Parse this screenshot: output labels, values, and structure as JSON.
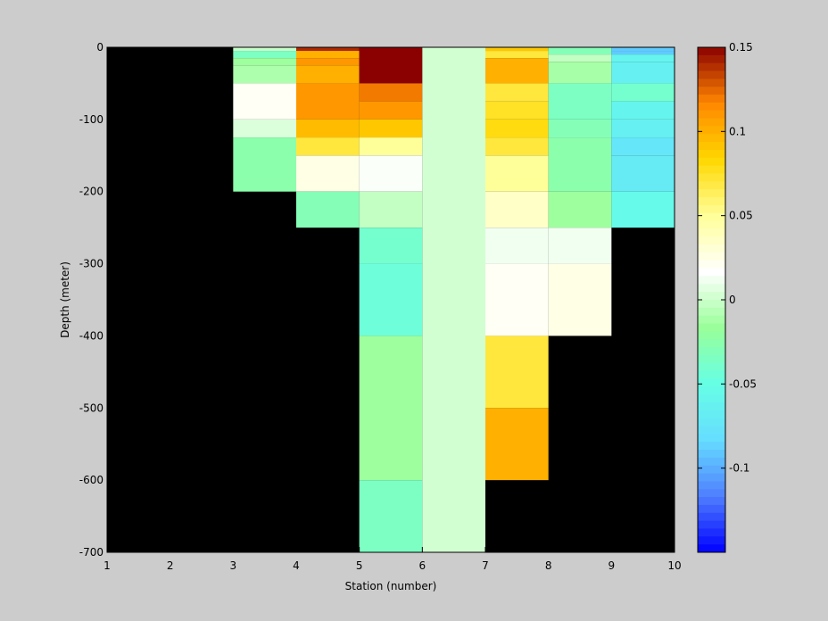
{
  "chart_data": {
    "type": "heatmap",
    "xlabel": "Station (number)",
    "ylabel": "Depth (meter)",
    "xlim": [
      1,
      10
    ],
    "ylim": [
      -700,
      0
    ],
    "x_ticks": [
      "1",
      "2",
      "3",
      "4",
      "5",
      "6",
      "7",
      "8",
      "9",
      "10"
    ],
    "y_ticks": [
      "0",
      "-100",
      "-200",
      "-300",
      "-400",
      "-500",
      "-600",
      "-700"
    ],
    "background_color": "#000000",
    "colorbar": {
      "min": -0.15,
      "max": 0.15,
      "ticks": [
        "0.15",
        "0.1",
        "0.05",
        "0",
        "-0.05",
        "-0.1"
      ],
      "colormap": [
        "#0000ff",
        "#4f7fff",
        "#66ddff",
        "#66ffe6",
        "#99ff99",
        "#ffffff",
        "#ffff99",
        "#ffd700",
        "#ff8800",
        "#8b0000"
      ]
    },
    "cells": [
      {
        "x0": 3,
        "x1": 4,
        "y0": 0,
        "y1": -5,
        "value": -0.001
      },
      {
        "x0": 3,
        "x1": 4,
        "y0": -5,
        "y1": -15,
        "value": -0.035
      },
      {
        "x0": 3,
        "x1": 4,
        "y0": -15,
        "y1": -25,
        "value": -0.015
      },
      {
        "x0": 3,
        "x1": 4,
        "y0": -25,
        "y1": -50,
        "value": -0.01
      },
      {
        "x0": 3,
        "x1": 4,
        "y0": -50,
        "y1": -100,
        "value": 0.02
      },
      {
        "x0": 3,
        "x1": 4,
        "y0": -100,
        "y1": -125,
        "value": 0.005
      },
      {
        "x0": 3,
        "x1": 4,
        "y0": -125,
        "y1": -200,
        "value": -0.025
      },
      {
        "x0": 4,
        "x1": 5,
        "y0": 0,
        "y1": -5,
        "value": 0.14
      },
      {
        "x0": 4,
        "x1": 5,
        "y0": -5,
        "y1": -15,
        "value": 0.1
      },
      {
        "x0": 4,
        "x1": 5,
        "y0": -15,
        "y1": -25,
        "value": 0.11
      },
      {
        "x0": 4,
        "x1": 5,
        "y0": -25,
        "y1": -50,
        "value": 0.1
      },
      {
        "x0": 4,
        "x1": 5,
        "y0": -50,
        "y1": -100,
        "value": 0.11
      },
      {
        "x0": 4,
        "x1": 5,
        "y0": -100,
        "y1": -125,
        "value": 0.095
      },
      {
        "x0": 4,
        "x1": 5,
        "y0": -125,
        "y1": -150,
        "value": 0.07
      },
      {
        "x0": 4,
        "x1": 5,
        "y0": -150,
        "y1": -200,
        "value": 0.025
      },
      {
        "x0": 4,
        "x1": 5,
        "y0": -200,
        "y1": -250,
        "value": -0.03
      },
      {
        "x0": 5,
        "x1": 6,
        "y0": 0,
        "y1": -50,
        "value": 0.15
      },
      {
        "x0": 5,
        "x1": 6,
        "y0": -50,
        "y1": -75,
        "value": 0.12
      },
      {
        "x0": 5,
        "x1": 6,
        "y0": -75,
        "y1": -100,
        "value": 0.11
      },
      {
        "x0": 5,
        "x1": 6,
        "y0": -100,
        "y1": -125,
        "value": 0.09
      },
      {
        "x0": 5,
        "x1": 6,
        "y0": -125,
        "y1": -150,
        "value": 0.05
      },
      {
        "x0": 5,
        "x1": 6,
        "y0": -150,
        "y1": -200,
        "value": 0.015
      },
      {
        "x0": 5,
        "x1": 6,
        "y0": -200,
        "y1": -250,
        "value": -0.003
      },
      {
        "x0": 5,
        "x1": 6,
        "y0": -250,
        "y1": -300,
        "value": -0.04
      },
      {
        "x0": 5,
        "x1": 6,
        "y0": -300,
        "y1": -400,
        "value": -0.045
      },
      {
        "x0": 5,
        "x1": 6,
        "y0": -400,
        "y1": -600,
        "value": -0.015
      },
      {
        "x0": 5,
        "x1": 6,
        "y0": -600,
        "y1": -700,
        "value": -0.035
      },
      {
        "x0": 6,
        "x1": 7,
        "y0": 0,
        "y1": -700,
        "value": 0.002
      },
      {
        "x0": 7,
        "x1": 8,
        "y0": 0,
        "y1": -5,
        "value": 0.09
      },
      {
        "x0": 7,
        "x1": 8,
        "y0": -5,
        "y1": -15,
        "value": 0.07
      },
      {
        "x0": 7,
        "x1": 8,
        "y0": -15,
        "y1": -50,
        "value": 0.1
      },
      {
        "x0": 7,
        "x1": 8,
        "y0": -50,
        "y1": -75,
        "value": 0.07
      },
      {
        "x0": 7,
        "x1": 8,
        "y0": -75,
        "y1": -100,
        "value": 0.075
      },
      {
        "x0": 7,
        "x1": 8,
        "y0": -100,
        "y1": -125,
        "value": 0.08
      },
      {
        "x0": 7,
        "x1": 8,
        "y0": -125,
        "y1": -150,
        "value": 0.07
      },
      {
        "x0": 7,
        "x1": 8,
        "y0": -150,
        "y1": -200,
        "value": 0.05
      },
      {
        "x0": 7,
        "x1": 8,
        "y0": -200,
        "y1": -250,
        "value": 0.035
      },
      {
        "x0": 7,
        "x1": 8,
        "y0": -250,
        "y1": -300,
        "value": 0.012
      },
      {
        "x0": 7,
        "x1": 8,
        "y0": -300,
        "y1": -400,
        "value": 0.02
      },
      {
        "x0": 7,
        "x1": 8,
        "y0": -400,
        "y1": -500,
        "value": 0.07
      },
      {
        "x0": 7,
        "x1": 8,
        "y0": -500,
        "y1": -600,
        "value": 0.1
      },
      {
        "x0": 8,
        "x1": 9,
        "y0": 0,
        "y1": -10,
        "value": -0.03
      },
      {
        "x0": 8,
        "x1": 9,
        "y0": -10,
        "y1": -20,
        "value": -0.003
      },
      {
        "x0": 8,
        "x1": 9,
        "y0": -20,
        "y1": -50,
        "value": -0.012
      },
      {
        "x0": 8,
        "x1": 9,
        "y0": -50,
        "y1": -100,
        "value": -0.035
      },
      {
        "x0": 8,
        "x1": 9,
        "y0": -100,
        "y1": -125,
        "value": -0.03
      },
      {
        "x0": 8,
        "x1": 9,
        "y0": -125,
        "y1": -200,
        "value": -0.025
      },
      {
        "x0": 8,
        "x1": 9,
        "y0": -200,
        "y1": -250,
        "value": -0.015
      },
      {
        "x0": 8,
        "x1": 9,
        "y0": -250,
        "y1": -300,
        "value": 0.012
      },
      {
        "x0": 8,
        "x1": 9,
        "y0": -300,
        "y1": -400,
        "value": 0.025
      },
      {
        "x0": 9,
        "x1": 10,
        "y0": 0,
        "y1": -5,
        "value": -0.09
      },
      {
        "x0": 9,
        "x1": 10,
        "y0": -5,
        "y1": -10,
        "value": -0.09
      },
      {
        "x0": 9,
        "x1": 10,
        "y0": -10,
        "y1": -20,
        "value": -0.06
      },
      {
        "x0": 9,
        "x1": 10,
        "y0": -20,
        "y1": -50,
        "value": -0.065
      },
      {
        "x0": 9,
        "x1": 10,
        "y0": -50,
        "y1": -75,
        "value": -0.04
      },
      {
        "x0": 9,
        "x1": 10,
        "y0": -75,
        "y1": -100,
        "value": -0.06
      },
      {
        "x0": 9,
        "x1": 10,
        "y0": -100,
        "y1": -125,
        "value": -0.065
      },
      {
        "x0": 9,
        "x1": 10,
        "y0": -125,
        "y1": -150,
        "value": -0.075
      },
      {
        "x0": 9,
        "x1": 10,
        "y0": -150,
        "y1": -200,
        "value": -0.07
      },
      {
        "x0": 9,
        "x1": 10,
        "y0": -200,
        "y1": -250,
        "value": -0.055
      }
    ]
  }
}
